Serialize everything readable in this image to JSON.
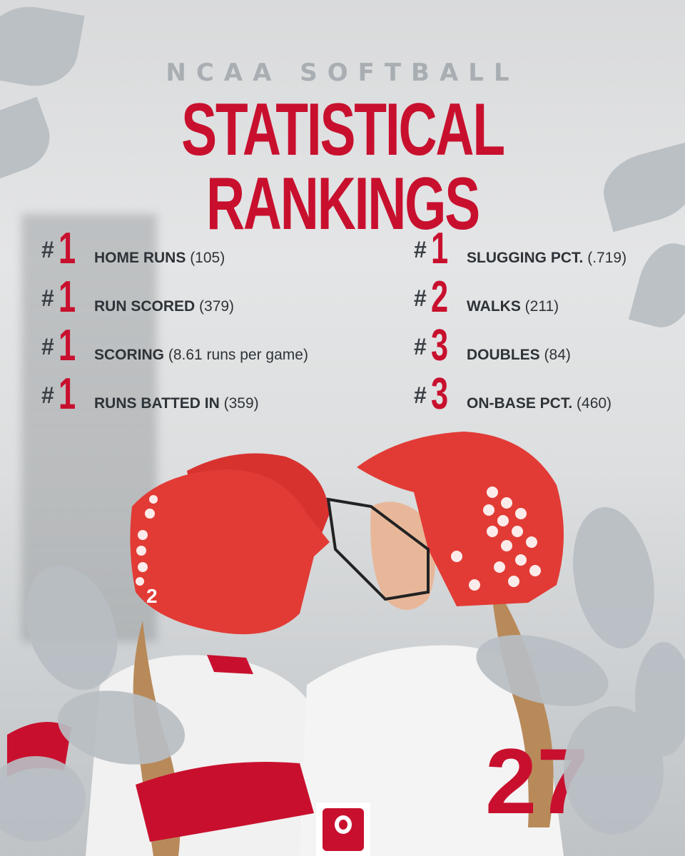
{
  "header": {
    "supertitle": "NCAA SOFTBALL",
    "title": "STATISTICAL RANKINGS"
  },
  "rankings_left": [
    {
      "hash": "#",
      "rank": "1",
      "label": "HOME RUNS",
      "value": "(105)"
    },
    {
      "hash": "#",
      "rank": "1",
      "label": "RUN SCORED",
      "value": "(379)"
    },
    {
      "hash": "#",
      "rank": "1",
      "label": "SCORING",
      "value": "(8.61 runs per game)"
    },
    {
      "hash": "#",
      "rank": "1",
      "label": "RUNS BATTED IN",
      "value": "(359)"
    }
  ],
  "rankings_right": [
    {
      "hash": "#",
      "rank": "1",
      "label": "SLUGGING PCT.",
      "value": "(.719)"
    },
    {
      "hash": "#",
      "rank": "2",
      "label": "WALKS",
      "value": "(211)"
    },
    {
      "hash": "#",
      "rank": "3",
      "label": "DOUBLES",
      "value": "(84)"
    },
    {
      "hash": "#",
      "rank": "3",
      "label": "ON-BASE PCT.",
      "value": "(460)"
    }
  ],
  "colors": {
    "accent": "#c8102e",
    "text": "#2e3338",
    "supertitle": "#a9aeb3"
  },
  "photo": {
    "jersey_numbers": [
      "2",
      "27"
    ]
  },
  "logo": {
    "icon": "ohio-state-block-o-icon"
  }
}
